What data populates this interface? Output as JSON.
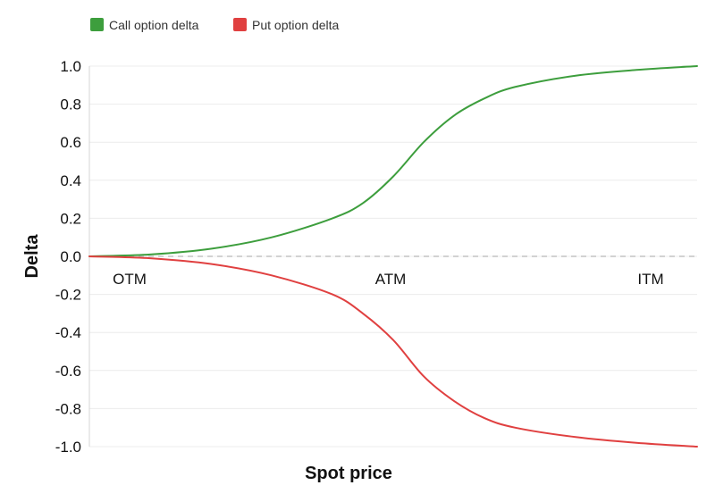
{
  "chart_data": {
    "type": "line",
    "title": "",
    "xlabel": "Spot price",
    "ylabel": "Delta",
    "ylim": [
      -1.0,
      1.0
    ],
    "yticks": [
      "1.0",
      "0.8",
      "0.6",
      "0.4",
      "0.2",
      "0.0",
      "-0.2",
      "-0.4",
      "-0.6",
      "-0.8",
      "-1.0"
    ],
    "x_region_labels": [
      "OTM",
      "ATM",
      "ITM"
    ],
    "grid": "horizontal",
    "legend_position": "top-left",
    "zero_line": "dashed",
    "series": [
      {
        "name": "Call option delta",
        "color": "#3d9e3d",
        "x": [
          0,
          10,
          20,
          30,
          40,
          45,
          50,
          55,
          60,
          65,
          70,
          80,
          90,
          100
        ],
        "values": [
          0.0,
          0.01,
          0.04,
          0.1,
          0.2,
          0.28,
          0.42,
          0.6,
          0.74,
          0.83,
          0.89,
          0.95,
          0.98,
          1.0
        ]
      },
      {
        "name": "Put option delta",
        "color": "#e04040",
        "x": [
          0,
          10,
          20,
          30,
          40,
          45,
          50,
          55,
          60,
          65,
          70,
          80,
          90,
          100
        ],
        "values": [
          0.0,
          -0.01,
          -0.04,
          -0.1,
          -0.2,
          -0.3,
          -0.44,
          -0.63,
          -0.76,
          -0.85,
          -0.9,
          -0.95,
          -0.98,
          -1.0
        ]
      }
    ]
  }
}
